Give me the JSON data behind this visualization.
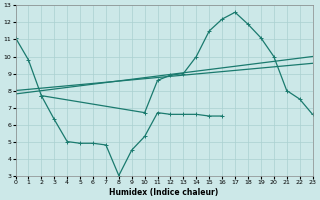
{
  "xlabel": "Humidex (Indice chaleur)",
  "xlim": [
    0,
    23
  ],
  "ylim": [
    3,
    13
  ],
  "xticks": [
    0,
    1,
    2,
    3,
    4,
    5,
    6,
    7,
    8,
    9,
    10,
    11,
    12,
    13,
    14,
    15,
    16,
    17,
    18,
    19,
    20,
    21,
    22,
    23
  ],
  "yticks": [
    3,
    4,
    5,
    6,
    7,
    8,
    9,
    10,
    11,
    12,
    13
  ],
  "bg_color": "#cce8e8",
  "grid_color": "#aad0d0",
  "line_color": "#1a7a6e",
  "line1_x": [
    0,
    1,
    2,
    3,
    4,
    5,
    6,
    7,
    8,
    9,
    10,
    11,
    12,
    13,
    14,
    15,
    16
  ],
  "line1_y": [
    11.1,
    9.8,
    7.7,
    6.3,
    5.0,
    4.9,
    4.9,
    4.8,
    3.0,
    4.5,
    5.3,
    6.7,
    6.6,
    6.6,
    6.6,
    6.5,
    6.5
  ],
  "line2_x": [
    2,
    10,
    11,
    12,
    13,
    14,
    15,
    16,
    17,
    18,
    19,
    20,
    21,
    22,
    23
  ],
  "line2_y": [
    7.7,
    6.7,
    8.6,
    8.9,
    9.0,
    10.0,
    11.5,
    12.2,
    12.6,
    11.9,
    11.1,
    10.0,
    8.0,
    7.5,
    6.6
  ],
  "line3_x0": 0,
  "line3_x1": 23,
  "line3_y0": 7.8,
  "line3_y1": 10.0,
  "line4_x0": 0,
  "line4_x1": 23,
  "line4_y0": 8.0,
  "line4_y1": 9.6
}
